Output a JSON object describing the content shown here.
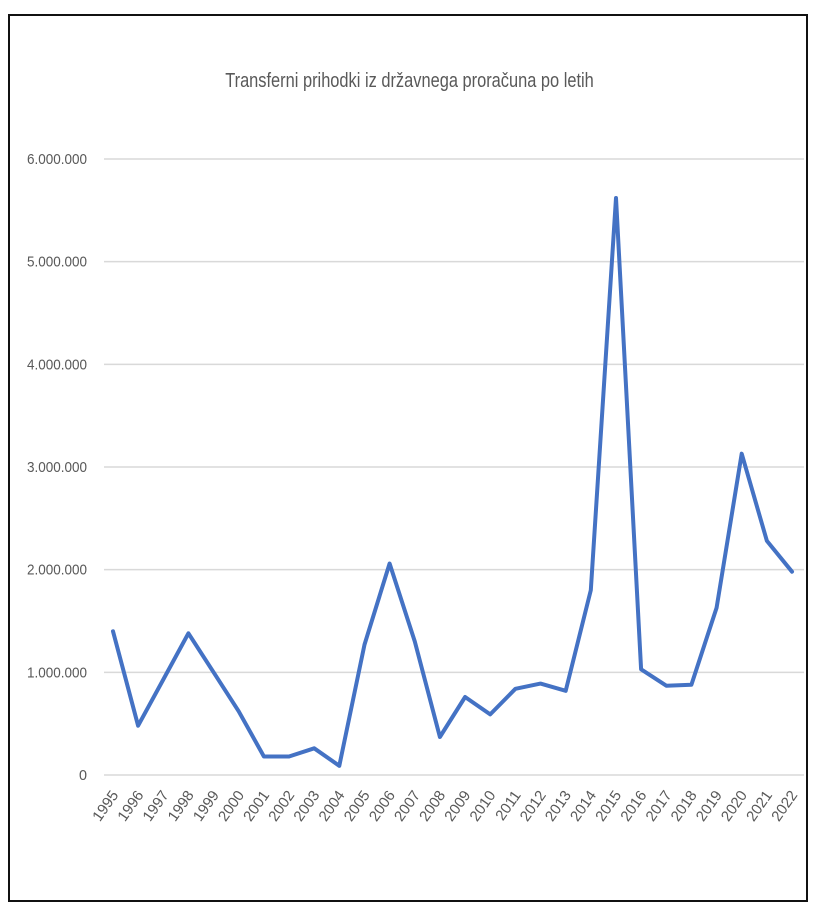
{
  "chart_data": {
    "type": "line",
    "title": "Transferni prihodki iz državnega proračuna po letih",
    "xlabel": "",
    "ylabel": "",
    "ylim": [
      0,
      6000000
    ],
    "y_ticks": [
      0,
      1000000,
      2000000,
      3000000,
      4000000,
      5000000,
      6000000
    ],
    "y_tick_labels": [
      "0",
      "1.000.000",
      "2.000.000",
      "3.000.000",
      "4.000.000",
      "5.000.000",
      "6.000.000"
    ],
    "grid": true,
    "categories": [
      "1995",
      "1996",
      "1997",
      "1998",
      "1999",
      "2000",
      "2001",
      "2002",
      "2003",
      "2004",
      "2005",
      "2006",
      "2007",
      "2008",
      "2009",
      "2010",
      "2011",
      "2012",
      "2013",
      "2014",
      "2015",
      "2016",
      "2017",
      "2018",
      "2019",
      "2020",
      "2021",
      "2022"
    ],
    "series": [
      {
        "values": [
          1400000,
          480000,
          930000,
          1380000,
          1000000,
          620000,
          180000,
          180000,
          260000,
          90000,
          1270000,
          2060000,
          1300000,
          370000,
          760000,
          590000,
          840000,
          890000,
          820000,
          1800000,
          5620000,
          1030000,
          870000,
          880000,
          1630000,
          3130000,
          2280000,
          1980000
        ],
        "color": "#4472C4"
      }
    ]
  }
}
